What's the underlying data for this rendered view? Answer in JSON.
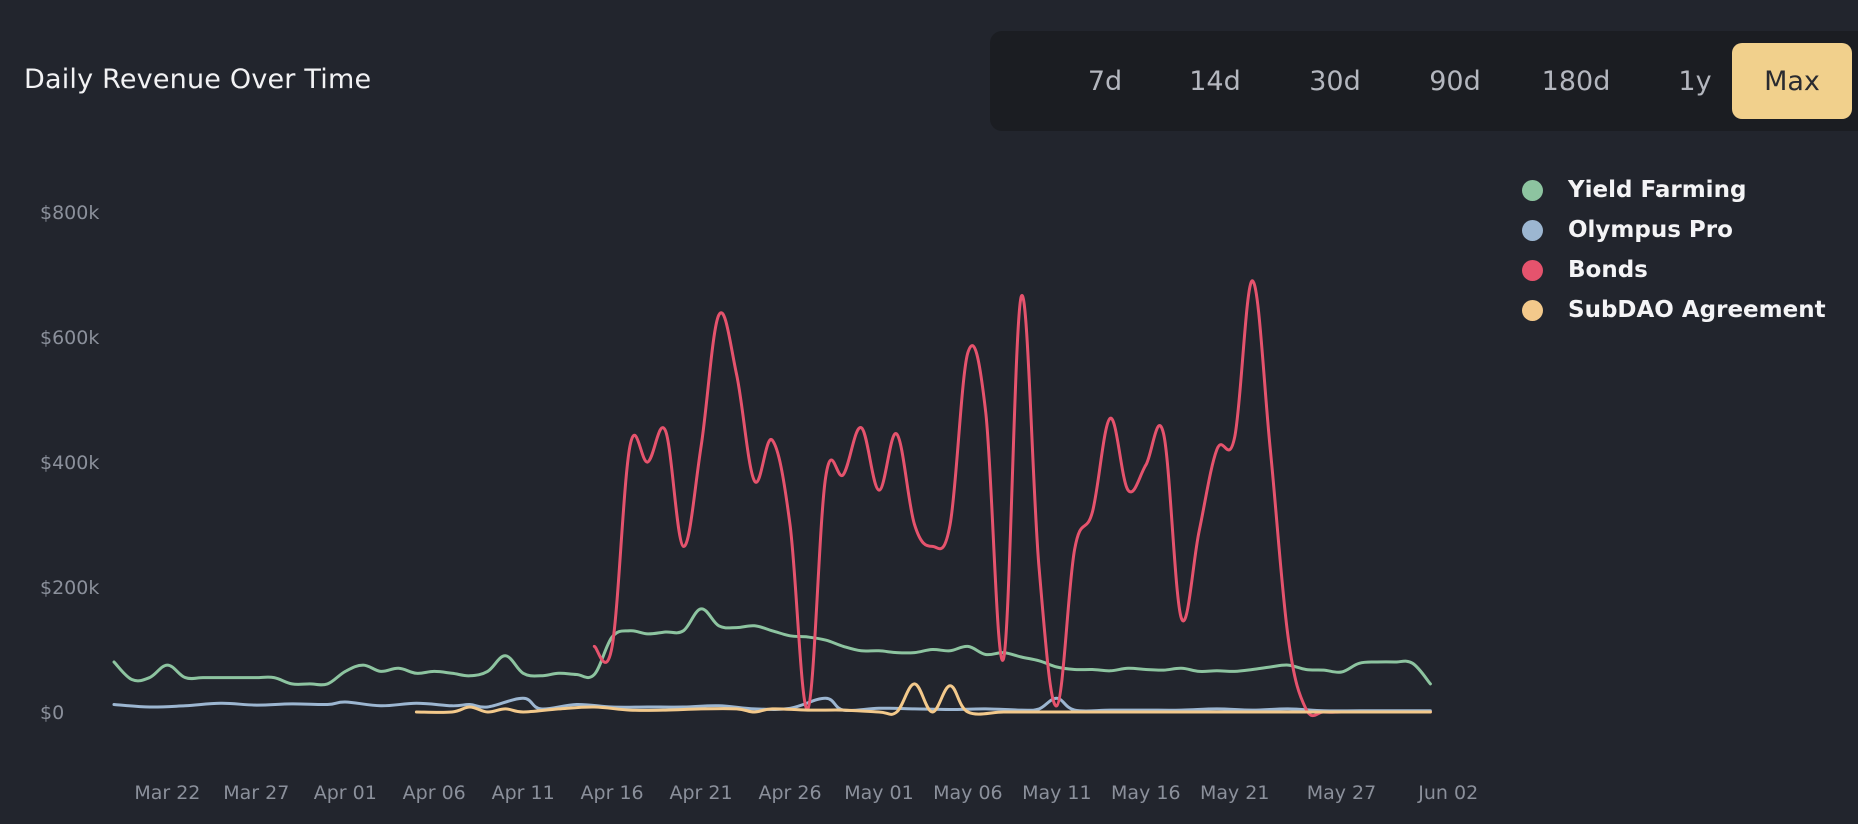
{
  "header": {
    "title": "Daily Revenue Over Time",
    "ranges": [
      {
        "label": "7d",
        "active": false
      },
      {
        "label": "14d",
        "active": false
      },
      {
        "label": "30d",
        "active": false
      },
      {
        "label": "90d",
        "active": false
      },
      {
        "label": "180d",
        "active": false
      },
      {
        "label": "1y",
        "active": false
      },
      {
        "label": "Max",
        "active": true
      }
    ]
  },
  "colors": {
    "background": "#22252d",
    "active_range": "#f1d08c"
  },
  "chart_data": {
    "type": "line",
    "title": "Daily Revenue Over Time",
    "xlabel": "",
    "ylabel": "",
    "x_range": [
      "2022-03-19",
      "2022-06-03"
    ],
    "ylim": [
      0,
      800000
    ],
    "grid": false,
    "legend_position": "top-right",
    "y_ticks": [
      {
        "value": 0,
        "label": "$0"
      },
      {
        "value": 200000,
        "label": "$200k"
      },
      {
        "value": 400000,
        "label": "$400k"
      },
      {
        "value": 600000,
        "label": "$600k"
      },
      {
        "value": 800000,
        "label": "$800k"
      }
    ],
    "x_ticks": [
      {
        "date": "2022-03-22",
        "label": "Mar 22"
      },
      {
        "date": "2022-03-27",
        "label": "Mar 27"
      },
      {
        "date": "2022-04-01",
        "label": "Apr 01"
      },
      {
        "date": "2022-04-06",
        "label": "Apr 06"
      },
      {
        "date": "2022-04-11",
        "label": "Apr 11"
      },
      {
        "date": "2022-04-16",
        "label": "Apr 16"
      },
      {
        "date": "2022-04-21",
        "label": "Apr 21"
      },
      {
        "date": "2022-04-26",
        "label": "Apr 26"
      },
      {
        "date": "2022-05-01",
        "label": "May 01"
      },
      {
        "date": "2022-05-06",
        "label": "May 06"
      },
      {
        "date": "2022-05-11",
        "label": "May 11"
      },
      {
        "date": "2022-05-16",
        "label": "May 16"
      },
      {
        "date": "2022-05-21",
        "label": "May 21"
      },
      {
        "date": "2022-05-27",
        "label": "May 27"
      },
      {
        "date": "2022-06-02",
        "label": "Jun 02"
      }
    ],
    "series": [
      {
        "name": "Yield Farming",
        "color": "#8dc4a0",
        "points": [
          [
            "2022-03-19",
            80000
          ],
          [
            "2022-03-20",
            52000
          ],
          [
            "2022-03-21",
            55000
          ],
          [
            "2022-03-22",
            75000
          ],
          [
            "2022-03-23",
            55000
          ],
          [
            "2022-03-24",
            55000
          ],
          [
            "2022-03-25",
            55000
          ],
          [
            "2022-03-26",
            55000
          ],
          [
            "2022-03-27",
            55000
          ],
          [
            "2022-03-28",
            55000
          ],
          [
            "2022-03-29",
            45000
          ],
          [
            "2022-03-30",
            45000
          ],
          [
            "2022-03-31",
            45000
          ],
          [
            "2022-04-01",
            65000
          ],
          [
            "2022-04-02",
            75000
          ],
          [
            "2022-04-03",
            65000
          ],
          [
            "2022-04-04",
            70000
          ],
          [
            "2022-04-05",
            62000
          ],
          [
            "2022-04-06",
            65000
          ],
          [
            "2022-04-07",
            62000
          ],
          [
            "2022-04-08",
            58000
          ],
          [
            "2022-04-09",
            65000
          ],
          [
            "2022-04-10",
            90000
          ],
          [
            "2022-04-11",
            62000
          ],
          [
            "2022-04-12",
            58000
          ],
          [
            "2022-04-13",
            62000
          ],
          [
            "2022-04-14",
            60000
          ],
          [
            "2022-04-15",
            60000
          ],
          [
            "2022-04-16",
            120000
          ],
          [
            "2022-04-17",
            130000
          ],
          [
            "2022-04-18",
            125000
          ],
          [
            "2022-04-19",
            128000
          ],
          [
            "2022-04-20",
            130000
          ],
          [
            "2022-04-21",
            165000
          ],
          [
            "2022-04-22",
            138000
          ],
          [
            "2022-04-23",
            135000
          ],
          [
            "2022-04-24",
            138000
          ],
          [
            "2022-04-25",
            130000
          ],
          [
            "2022-04-26",
            122000
          ],
          [
            "2022-04-27",
            120000
          ],
          [
            "2022-04-28",
            115000
          ],
          [
            "2022-04-29",
            105000
          ],
          [
            "2022-04-30",
            98000
          ],
          [
            "2022-05-01",
            98000
          ],
          [
            "2022-05-02",
            95000
          ],
          [
            "2022-05-03",
            95000
          ],
          [
            "2022-05-04",
            100000
          ],
          [
            "2022-05-05",
            98000
          ],
          [
            "2022-05-06",
            105000
          ],
          [
            "2022-05-07",
            92000
          ],
          [
            "2022-05-08",
            95000
          ],
          [
            "2022-05-09",
            88000
          ],
          [
            "2022-05-10",
            82000
          ],
          [
            "2022-05-11",
            72000
          ],
          [
            "2022-05-12",
            68000
          ],
          [
            "2022-05-13",
            68000
          ],
          [
            "2022-05-14",
            66000
          ],
          [
            "2022-05-15",
            70000
          ],
          [
            "2022-05-16",
            68000
          ],
          [
            "2022-05-17",
            67000
          ],
          [
            "2022-05-18",
            70000
          ],
          [
            "2022-05-19",
            65000
          ],
          [
            "2022-05-20",
            66000
          ],
          [
            "2022-05-21",
            65000
          ],
          [
            "2022-05-22",
            68000
          ],
          [
            "2022-05-23",
            72000
          ],
          [
            "2022-05-24",
            75000
          ],
          [
            "2022-05-25",
            68000
          ],
          [
            "2022-05-26",
            67000
          ],
          [
            "2022-05-27",
            64000
          ],
          [
            "2022-05-28",
            78000
          ],
          [
            "2022-05-29",
            80000
          ],
          [
            "2022-05-30",
            80000
          ],
          [
            "2022-05-31",
            78000
          ],
          [
            "2022-06-01",
            45000
          ]
        ]
      },
      {
        "name": "Olympus Pro",
        "color": "#9cb6d1",
        "points": [
          [
            "2022-03-19",
            12000
          ],
          [
            "2022-03-21",
            8000
          ],
          [
            "2022-03-23",
            10000
          ],
          [
            "2022-03-25",
            14000
          ],
          [
            "2022-03-27",
            11000
          ],
          [
            "2022-03-29",
            13000
          ],
          [
            "2022-03-31",
            12000
          ],
          [
            "2022-04-01",
            16000
          ],
          [
            "2022-04-03",
            10000
          ],
          [
            "2022-04-05",
            14000
          ],
          [
            "2022-04-07",
            10000
          ],
          [
            "2022-04-08",
            12000
          ],
          [
            "2022-04-09",
            8000
          ],
          [
            "2022-04-11",
            22000
          ],
          [
            "2022-04-12",
            5000
          ],
          [
            "2022-04-14",
            12000
          ],
          [
            "2022-04-16",
            8000
          ],
          [
            "2022-04-18",
            8000
          ],
          [
            "2022-04-20",
            8000
          ],
          [
            "2022-04-22",
            10000
          ],
          [
            "2022-04-24",
            5000
          ],
          [
            "2022-04-26",
            6000
          ],
          [
            "2022-04-28",
            22000
          ],
          [
            "2022-04-29",
            3000
          ],
          [
            "2022-05-01",
            6000
          ],
          [
            "2022-05-03",
            5000
          ],
          [
            "2022-05-05",
            4000
          ],
          [
            "2022-05-07",
            5000
          ],
          [
            "2022-05-09",
            3000
          ],
          [
            "2022-05-10",
            5000
          ],
          [
            "2022-05-11",
            22000
          ],
          [
            "2022-05-12",
            3000
          ],
          [
            "2022-05-14",
            3000
          ],
          [
            "2022-05-16",
            3000
          ],
          [
            "2022-05-18",
            3000
          ],
          [
            "2022-05-20",
            5000
          ],
          [
            "2022-05-22",
            3000
          ],
          [
            "2022-05-24",
            5000
          ],
          [
            "2022-05-26",
            2000
          ],
          [
            "2022-05-28",
            2000
          ],
          [
            "2022-05-30",
            2000
          ],
          [
            "2022-06-01",
            2000
          ]
        ]
      },
      {
        "name": "Bonds",
        "color": "#e5536d",
        "points": [
          [
            "2022-04-15",
            105000
          ],
          [
            "2022-04-16",
            105000
          ],
          [
            "2022-04-17",
            425000
          ],
          [
            "2022-04-18",
            400000
          ],
          [
            "2022-04-19",
            450000
          ],
          [
            "2022-04-20",
            265000
          ],
          [
            "2022-04-21",
            425000
          ],
          [
            "2022-04-22",
            635000
          ],
          [
            "2022-04-23",
            540000
          ],
          [
            "2022-04-24",
            370000
          ],
          [
            "2022-04-25",
            435000
          ],
          [
            "2022-04-26",
            300000
          ],
          [
            "2022-04-27",
            5000
          ],
          [
            "2022-04-28",
            375000
          ],
          [
            "2022-04-29",
            380000
          ],
          [
            "2022-04-30",
            455000
          ],
          [
            "2022-05-01",
            355000
          ],
          [
            "2022-05-02",
            445000
          ],
          [
            "2022-05-03",
            300000
          ],
          [
            "2022-05-04",
            265000
          ],
          [
            "2022-05-05",
            300000
          ],
          [
            "2022-05-06",
            575000
          ],
          [
            "2022-05-07",
            480000
          ],
          [
            "2022-05-08",
            85000
          ],
          [
            "2022-05-09",
            665000
          ],
          [
            "2022-05-10",
            230000
          ],
          [
            "2022-05-11",
            10000
          ],
          [
            "2022-05-12",
            260000
          ],
          [
            "2022-05-13",
            320000
          ],
          [
            "2022-05-14",
            470000
          ],
          [
            "2022-05-15",
            355000
          ],
          [
            "2022-05-16",
            395000
          ],
          [
            "2022-05-17",
            445000
          ],
          [
            "2022-05-18",
            150000
          ],
          [
            "2022-05-19",
            290000
          ],
          [
            "2022-05-20",
            420000
          ],
          [
            "2022-05-21",
            440000
          ],
          [
            "2022-05-22",
            690000
          ],
          [
            "2022-05-23",
            420000
          ],
          [
            "2022-05-24",
            120000
          ],
          [
            "2022-05-25",
            5000
          ],
          [
            "2022-05-26",
            0
          ],
          [
            "2022-05-27",
            0
          ],
          [
            "2022-05-28",
            0
          ],
          [
            "2022-05-29",
            0
          ],
          [
            "2022-05-30",
            0
          ],
          [
            "2022-05-31",
            0
          ],
          [
            "2022-06-01",
            0
          ]
        ]
      },
      {
        "name": "SubDAO Agreement",
        "color": "#f3c98b",
        "points": [
          [
            "2022-04-05",
            0
          ],
          [
            "2022-04-07",
            0
          ],
          [
            "2022-04-08",
            8000
          ],
          [
            "2022-04-09",
            0
          ],
          [
            "2022-04-10",
            5000
          ],
          [
            "2022-04-11",
            0
          ],
          [
            "2022-04-13",
            5000
          ],
          [
            "2022-04-15",
            8000
          ],
          [
            "2022-04-17",
            3000
          ],
          [
            "2022-04-19",
            3000
          ],
          [
            "2022-04-21",
            5000
          ],
          [
            "2022-04-23",
            5000
          ],
          [
            "2022-04-24",
            0
          ],
          [
            "2022-04-25",
            5000
          ],
          [
            "2022-04-27",
            3000
          ],
          [
            "2022-04-29",
            3000
          ],
          [
            "2022-05-01",
            0
          ],
          [
            "2022-05-02",
            0
          ],
          [
            "2022-05-03",
            45000
          ],
          [
            "2022-05-04",
            0
          ],
          [
            "2022-05-05",
            42000
          ],
          [
            "2022-05-06",
            0
          ],
          [
            "2022-05-08",
            0
          ],
          [
            "2022-05-10",
            0
          ],
          [
            "2022-05-12",
            0
          ],
          [
            "2022-05-15",
            0
          ],
          [
            "2022-05-18",
            0
          ],
          [
            "2022-05-21",
            0
          ],
          [
            "2022-05-24",
            0
          ],
          [
            "2022-05-27",
            0
          ],
          [
            "2022-05-30",
            0
          ],
          [
            "2022-06-01",
            0
          ]
        ]
      }
    ]
  }
}
